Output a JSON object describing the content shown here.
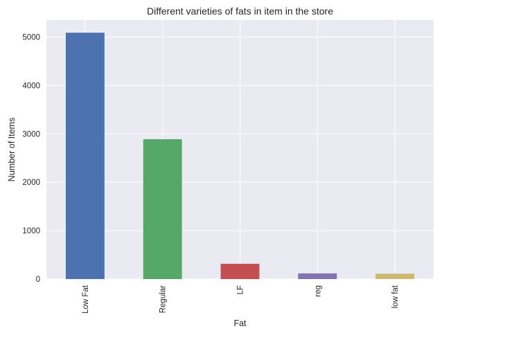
{
  "chart_data": {
    "type": "bar",
    "title": "Different varieties of fats in item in the store",
    "xlabel": "Fat",
    "ylabel": "Number of Items",
    "categories": [
      "Low Fat",
      "Regular",
      "LF",
      "reg",
      "low fat"
    ],
    "values": [
      5089,
      2889,
      316,
      117,
      112
    ],
    "ylim": [
      0,
      5350
    ],
    "yticks": [
      0,
      1000,
      2000,
      3000,
      4000,
      5000
    ],
    "grid": true,
    "legend": "none",
    "colors": [
      "#4c72b0",
      "#55a868",
      "#c44e52",
      "#8172b2",
      "#ccb974"
    ],
    "background": "#eaeaf2",
    "grid_color": "#ffffff"
  }
}
